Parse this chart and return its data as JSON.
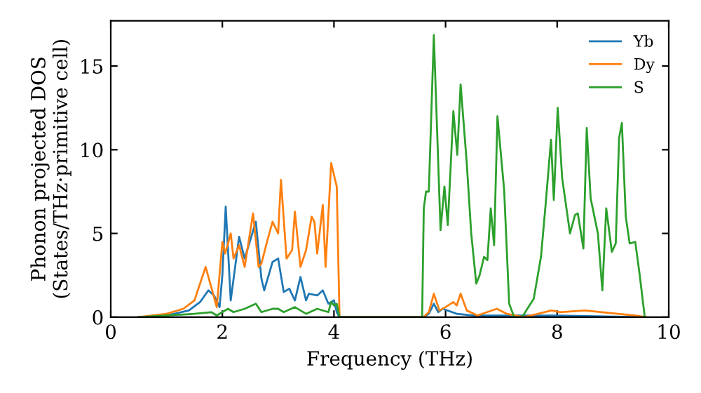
{
  "chart_data": {
    "type": "line",
    "xlabel": "Frequency (THz)",
    "ylabel": "Phonon projected DOS\n(States/THz·primitive cell)",
    "xlim": [
      0,
      10
    ],
    "ylim": [
      0,
      17.7
    ],
    "xticks": [
      0,
      2,
      4,
      6,
      8,
      10
    ],
    "yticks": [
      0,
      5,
      10,
      15
    ],
    "grid": false,
    "legend": "top right",
    "marker": "none",
    "line_style": "solid",
    "series": [
      {
        "name": "Yb",
        "color": "#1f77b4",
        "x": [
          0.5,
          1.0,
          1.4,
          1.6,
          1.75,
          1.85,
          1.95,
          2.0,
          2.06,
          2.15,
          2.3,
          2.4,
          2.6,
          2.7,
          2.75,
          2.9,
          3.0,
          3.1,
          3.2,
          3.3,
          3.4,
          3.5,
          3.55,
          3.7,
          3.8,
          3.9,
          4.0,
          4.05,
          4.1,
          5.6,
          5.7,
          5.79,
          5.87,
          5.95,
          6.2,
          6.5,
          7.0,
          8.0,
          9.5
        ],
        "values": [
          0,
          0.1,
          0.4,
          0.9,
          1.6,
          1.3,
          0.6,
          2.5,
          6.6,
          1.0,
          4.8,
          3.5,
          5.7,
          2.3,
          1.6,
          3.3,
          3.5,
          1.5,
          1.7,
          1.0,
          2.4,
          1.0,
          1.4,
          1.3,
          1.6,
          0.8,
          1.0,
          0.3,
          0,
          0,
          0.2,
          0.8,
          0.3,
          0.5,
          0.2,
          0.1,
          0.1,
          0.1,
          0
        ]
      },
      {
        "name": "Dy",
        "color": "#ff7f0e",
        "x": [
          0.5,
          1.0,
          1.3,
          1.5,
          1.65,
          1.7,
          1.8,
          1.9,
          2.0,
          2.05,
          2.15,
          2.2,
          2.3,
          2.4,
          2.55,
          2.65,
          2.7,
          2.8,
          2.9,
          3.0,
          3.05,
          3.15,
          3.25,
          3.3,
          3.4,
          3.5,
          3.6,
          3.65,
          3.7,
          3.8,
          3.85,
          3.95,
          4.05,
          4.1,
          5.6,
          5.7,
          5.79,
          5.89,
          6.0,
          6.14,
          6.2,
          6.27,
          6.38,
          6.57,
          6.92,
          7.1,
          7.4,
          7.9,
          8.05,
          8.5,
          8.8,
          9.4,
          9.6
        ],
        "values": [
          0,
          0.2,
          0.5,
          1.0,
          2.5,
          3.0,
          1.8,
          0.6,
          4.5,
          3.8,
          5.0,
          3.5,
          4.3,
          3.0,
          6.2,
          3.0,
          3.2,
          4.5,
          5.7,
          5.0,
          8.2,
          3.5,
          4.0,
          6.3,
          3.0,
          4.0,
          6.0,
          5.7,
          3.8,
          6.7,
          3.0,
          9.2,
          7.8,
          0,
          0,
          0.3,
          1.4,
          0.4,
          0.6,
          0.9,
          0.7,
          1.4,
          0.4,
          0.1,
          0.5,
          0.2,
          0,
          0.4,
          0.3,
          0.4,
          0.3,
          0.1,
          0
        ]
      },
      {
        "name": "S",
        "color": "#2ca02c",
        "x": [
          0.5,
          1.5,
          1.8,
          1.9,
          2.1,
          2.2,
          2.4,
          2.6,
          2.7,
          2.9,
          3.0,
          3.1,
          3.3,
          3.5,
          3.7,
          3.9,
          3.95,
          4.0,
          4.05,
          4.1,
          5.58,
          5.61,
          5.65,
          5.7,
          5.79,
          5.91,
          5.98,
          6.04,
          6.14,
          6.21,
          6.27,
          6.38,
          6.46,
          6.55,
          6.61,
          6.69,
          6.75,
          6.81,
          6.87,
          6.93,
          7.05,
          7.14,
          7.23,
          7.37,
          7.58,
          7.71,
          7.79,
          7.89,
          7.94,
          8.01,
          8.09,
          8.23,
          8.32,
          8.37,
          8.47,
          8.53,
          8.6,
          8.73,
          8.81,
          8.88,
          8.98,
          9.05,
          9.11,
          9.16,
          9.23,
          9.3,
          9.4,
          9.48,
          9.57
        ],
        "values": [
          0,
          0.2,
          0.3,
          0.1,
          0.5,
          0.3,
          0.5,
          0.8,
          0.3,
          0.5,
          0.5,
          0.3,
          0.6,
          0.2,
          0.5,
          0.3,
          0.9,
          0.7,
          0.8,
          0,
          0,
          6.5,
          7.5,
          7.5,
          16.85,
          5.2,
          7.8,
          5.5,
          12.3,
          9.7,
          13.9,
          9.2,
          5.0,
          2.0,
          2.5,
          3.6,
          3.4,
          6.5,
          4.3,
          12.0,
          7.6,
          0.8,
          0,
          0,
          1.1,
          3.6,
          6.6,
          10.6,
          7.0,
          12.5,
          8.3,
          5.0,
          6.1,
          6.2,
          4.1,
          11.3,
          7.1,
          5.0,
          1.6,
          6.5,
          3.9,
          4.4,
          10.7,
          11.6,
          6.0,
          4.4,
          4.5,
          2.5,
          0
        ]
      }
    ]
  }
}
